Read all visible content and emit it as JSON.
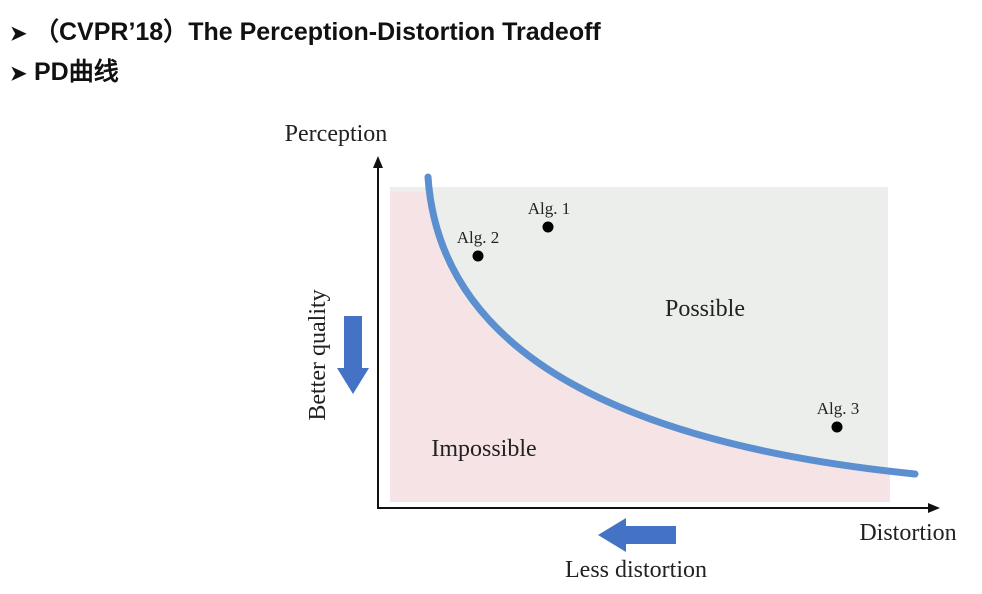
{
  "bullets": [
    {
      "symbol": "➤",
      "text": "（CVPR’18）The Perception-Distortion Tradeoff"
    },
    {
      "symbol": "➤",
      "text": "PD曲线"
    }
  ],
  "diagram": {
    "y_axis_label": "Perception",
    "x_axis_label": "Distortion",
    "region_possible": "Possible",
    "region_impossible": "Impossible",
    "better_quality": "Better quality",
    "less_distortion": "Less distortion",
    "points": [
      {
        "label": "Alg. 1"
      },
      {
        "label": "Alg. 2"
      },
      {
        "label": "Alg. 3"
      }
    ],
    "colors": {
      "curve": "#5b8fd0",
      "arrow": "#4472c4",
      "possible_fill": "#eceeeb",
      "impossible_fill": "#f6e3e5"
    }
  }
}
